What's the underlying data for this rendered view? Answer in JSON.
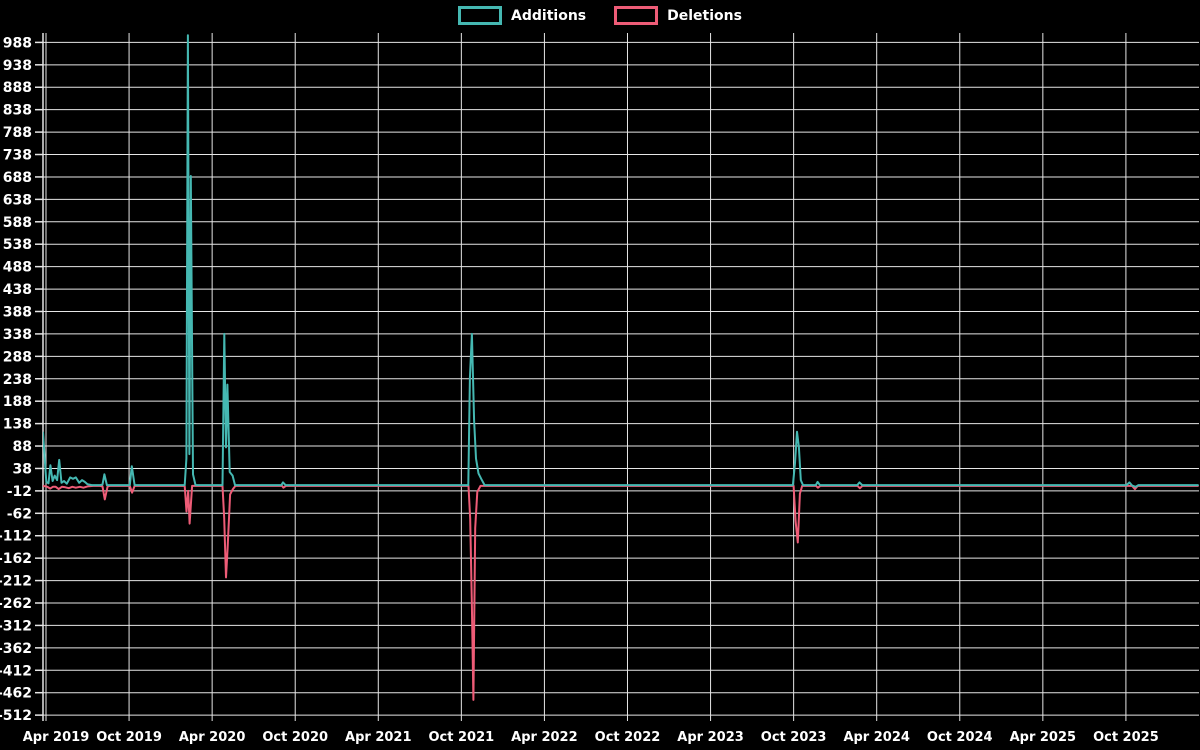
{
  "legend": {
    "additions_label": "Additions",
    "deletions_label": "Deletions"
  },
  "colors": {
    "background": "#000000",
    "additions": "#45b8b2",
    "deletions": "#ee5c77",
    "grid": "#e6e6e6",
    "axis": "#e6e6e6",
    "text": "#ffffff"
  },
  "chart_data": {
    "type": "line",
    "title": "",
    "xlabel": "",
    "ylabel": "",
    "legend_position": "top-center",
    "grid": true,
    "x_unit": "months since Apr 2019 tick",
    "x_tick_labels": [
      "Apr 2019",
      "Oct 2019",
      "Apr 2020",
      "Oct 2020",
      "Apr 2021",
      "Oct 2021",
      "Apr 2022",
      "Oct 2022",
      "Apr 2023",
      "Oct 2023",
      "Apr 2024",
      "Oct 2024",
      "Apr 2025",
      "Oct 2025"
    ],
    "x_tick_month_offsets": [
      0,
      6,
      12,
      18,
      24,
      30,
      36,
      42,
      48,
      54,
      60,
      66,
      72,
      78
    ],
    "y_ticks": [
      988,
      938,
      888,
      838,
      788,
      738,
      688,
      638,
      588,
      538,
      488,
      438,
      388,
      338,
      288,
      238,
      188,
      138,
      88,
      38,
      -12,
      -62,
      -112,
      -162,
      -212,
      -262,
      -312,
      -362,
      -412,
      -462,
      -512
    ],
    "xlim_months": [
      -0.25,
      83.3
    ],
    "ylim": [
      -522,
      1009
    ],
    "series": [
      {
        "name": "Additions",
        "color_key": "additions",
        "points": [
          [
            -0.22,
            118
          ],
          [
            0.02,
            8
          ],
          [
            0.18,
            5
          ],
          [
            0.32,
            45
          ],
          [
            0.48,
            10
          ],
          [
            0.63,
            22
          ],
          [
            0.8,
            12
          ],
          [
            0.95,
            57
          ],
          [
            1.12,
            6
          ],
          [
            1.3,
            10
          ],
          [
            1.5,
            4
          ],
          [
            1.75,
            18
          ],
          [
            1.95,
            15
          ],
          [
            2.15,
            18
          ],
          [
            2.4,
            6
          ],
          [
            2.6,
            12
          ],
          [
            2.8,
            8
          ],
          [
            3.0,
            3
          ],
          [
            3.3,
            1
          ],
          [
            3.9,
            1
          ],
          [
            4.08,
            2
          ],
          [
            4.22,
            25
          ],
          [
            4.4,
            1
          ],
          [
            6.05,
            1
          ],
          [
            6.2,
            43
          ],
          [
            6.4,
            1
          ],
          [
            10.02,
            1
          ],
          [
            10.14,
            60
          ],
          [
            10.25,
            1004
          ],
          [
            10.36,
            70
          ],
          [
            10.46,
            690
          ],
          [
            10.62,
            25
          ],
          [
            10.8,
            1
          ],
          [
            12.75,
            1
          ],
          [
            12.88,
            338
          ],
          [
            13.0,
            85
          ],
          [
            13.1,
            225
          ],
          [
            13.27,
            30
          ],
          [
            13.48,
            22
          ],
          [
            13.65,
            1
          ],
          [
            17.0,
            1
          ],
          [
            17.12,
            7
          ],
          [
            17.3,
            1
          ],
          [
            30.5,
            1
          ],
          [
            30.62,
            240
          ],
          [
            30.76,
            338
          ],
          [
            30.92,
            145
          ],
          [
            31.06,
            60
          ],
          [
            31.24,
            27
          ],
          [
            31.45,
            14
          ],
          [
            31.68,
            1
          ],
          [
            53.95,
            1
          ],
          [
            54.1,
            50
          ],
          [
            54.24,
            120
          ],
          [
            54.38,
            85
          ],
          [
            54.52,
            12
          ],
          [
            54.68,
            1
          ],
          [
            55.6,
            1
          ],
          [
            55.73,
            8
          ],
          [
            55.9,
            1
          ],
          [
            58.6,
            1
          ],
          [
            58.76,
            7
          ],
          [
            58.95,
            1
          ],
          [
            78.05,
            1
          ],
          [
            78.25,
            7
          ],
          [
            78.45,
            0
          ],
          [
            78.7,
            -3
          ],
          [
            78.9,
            1
          ],
          [
            83.2,
            1
          ]
        ]
      },
      {
        "name": "Deletions",
        "color_key": "deletions",
        "points": [
          [
            -0.22,
            -1
          ],
          [
            0.1,
            -3
          ],
          [
            0.3,
            -7
          ],
          [
            0.5,
            -3
          ],
          [
            0.7,
            -3
          ],
          [
            0.92,
            -8
          ],
          [
            1.15,
            -3
          ],
          [
            1.4,
            -4
          ],
          [
            1.65,
            -6
          ],
          [
            1.9,
            -3
          ],
          [
            2.15,
            -5
          ],
          [
            2.45,
            -3
          ],
          [
            2.7,
            -5
          ],
          [
            3.0,
            -2
          ],
          [
            3.4,
            -1
          ],
          [
            3.9,
            -1
          ],
          [
            4.08,
            -2
          ],
          [
            4.25,
            -31
          ],
          [
            4.45,
            -2
          ],
          [
            4.6,
            -1
          ],
          [
            6.05,
            -1
          ],
          [
            6.22,
            -16
          ],
          [
            6.4,
            -1
          ],
          [
            10.02,
            -1
          ],
          [
            10.15,
            -58
          ],
          [
            10.27,
            -12
          ],
          [
            10.37,
            -85
          ],
          [
            10.55,
            -1
          ],
          [
            12.75,
            -1
          ],
          [
            12.87,
            -73
          ],
          [
            13.0,
            -205
          ],
          [
            13.12,
            -140
          ],
          [
            13.3,
            -20
          ],
          [
            13.5,
            -8
          ],
          [
            13.68,
            -1
          ],
          [
            17.05,
            -1
          ],
          [
            17.15,
            -5
          ],
          [
            17.32,
            -1
          ],
          [
            30.52,
            -1
          ],
          [
            30.64,
            -75
          ],
          [
            30.76,
            -270
          ],
          [
            30.87,
            -478
          ],
          [
            31.0,
            -95
          ],
          [
            31.15,
            -14
          ],
          [
            31.38,
            -1
          ],
          [
            54.0,
            -1
          ],
          [
            54.14,
            -80
          ],
          [
            54.3,
            -127
          ],
          [
            54.45,
            -18
          ],
          [
            54.62,
            -1
          ],
          [
            55.62,
            -1
          ],
          [
            55.75,
            -5
          ],
          [
            55.92,
            -1
          ],
          [
            58.62,
            -1
          ],
          [
            58.78,
            -6
          ],
          [
            58.97,
            -1
          ],
          [
            78.45,
            -1
          ],
          [
            78.65,
            -8
          ],
          [
            78.85,
            -1
          ],
          [
            83.2,
            -1
          ]
        ]
      }
    ]
  }
}
